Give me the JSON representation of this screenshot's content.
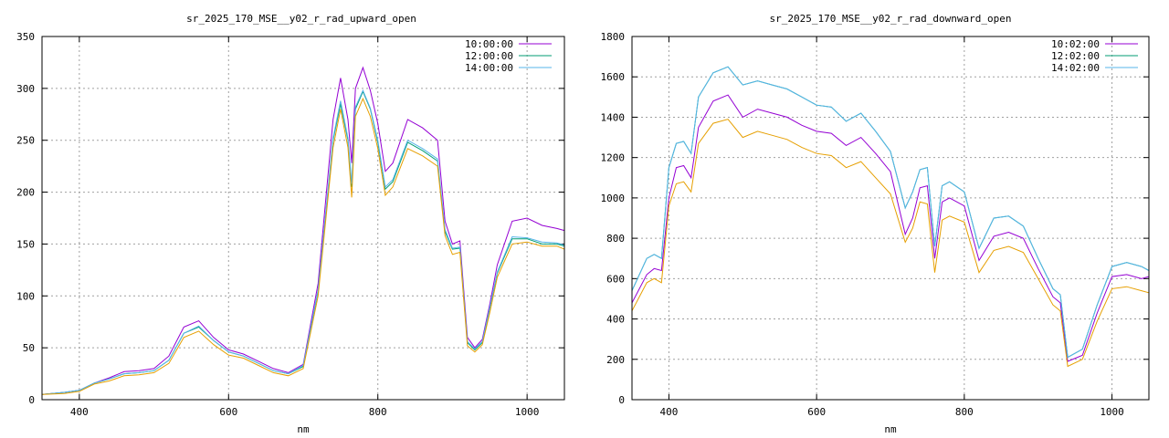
{
  "chart_data": [
    {
      "type": "line",
      "title": "sr_2025_170_MSE__y02_r_rad_upward_open",
      "xlabel": "nm",
      "ylabel": "",
      "xlim": [
        350,
        1050
      ],
      "ylim": [
        0,
        350
      ],
      "xticks": [
        400,
        600,
        800,
        1000
      ],
      "yticks": [
        0,
        50,
        100,
        150,
        200,
        250,
        300,
        350
      ],
      "grid": true,
      "legend": "top-right",
      "x": [
        350,
        380,
        400,
        420,
        440,
        460,
        480,
        500,
        520,
        540,
        560,
        580,
        600,
        620,
        640,
        660,
        680,
        700,
        720,
        740,
        750,
        760,
        765,
        770,
        780,
        790,
        800,
        810,
        820,
        840,
        860,
        880,
        890,
        900,
        910,
        920,
        930,
        940,
        950,
        960,
        980,
        1000,
        1020,
        1040,
        1050
      ],
      "series": [
        {
          "name": "10:00:00",
          "color": "#9400d3",
          "values": [
            5,
            7,
            9,
            16,
            21,
            27,
            28,
            30,
            42,
            70,
            76,
            60,
            48,
            44,
            37,
            30,
            26,
            34,
            112,
            270,
            310,
            270,
            228,
            300,
            320,
            298,
            266,
            220,
            228,
            270,
            262,
            250,
            172,
            150,
            153,
            60,
            50,
            58,
            92,
            130,
            172,
            175,
            168,
            165,
            163
          ]
        },
        {
          "name": "12:00:00",
          "color": "#009e73",
          "values": [
            5,
            7,
            9,
            16,
            20,
            25,
            26,
            28,
            38,
            64,
            70,
            57,
            46,
            42,
            35,
            28,
            25,
            32,
            105,
            250,
            285,
            250,
            205,
            280,
            297,
            280,
            248,
            203,
            210,
            248,
            240,
            230,
            162,
            145,
            146,
            55,
            48,
            55,
            88,
            122,
            155,
            155,
            150,
            150,
            148
          ]
        },
        {
          "name": "14:00:00",
          "color": "#56b4e9",
          "values": [
            5,
            7,
            9,
            16,
            20,
            25,
            26,
            28,
            38,
            64,
            71,
            57,
            46,
            42,
            35,
            28,
            25,
            33,
            106,
            252,
            288,
            252,
            208,
            282,
            298,
            281,
            250,
            205,
            212,
            250,
            242,
            232,
            164,
            146,
            147,
            56,
            49,
            56,
            89,
            123,
            157,
            156,
            152,
            151,
            149
          ]
        },
        {
          "name": "",
          "color": "#e69f00",
          "values": [
            5,
            6,
            8,
            15,
            18,
            23,
            24,
            26,
            35,
            60,
            66,
            53,
            43,
            40,
            33,
            26,
            23,
            30,
            100,
            243,
            280,
            243,
            195,
            273,
            290,
            273,
            242,
            197,
            205,
            242,
            235,
            225,
            158,
            140,
            142,
            52,
            46,
            53,
            84,
            118,
            150,
            152,
            148,
            148,
            145
          ]
        }
      ]
    },
    {
      "type": "line",
      "title": "sr_2025_170_MSE__y02_r_rad_downward_open",
      "xlabel": "nm",
      "ylabel": "",
      "xlim": [
        350,
        1050
      ],
      "ylim": [
        0,
        1800
      ],
      "xticks": [
        400,
        600,
        800,
        1000
      ],
      "yticks": [
        0,
        200,
        400,
        600,
        800,
        1000,
        1200,
        1400,
        1600,
        1800
      ],
      "grid": true,
      "legend": "top-right",
      "x": [
        350,
        370,
        380,
        390,
        400,
        410,
        420,
        430,
        440,
        460,
        480,
        500,
        520,
        540,
        560,
        580,
        600,
        620,
        640,
        660,
        680,
        700,
        720,
        730,
        740,
        750,
        760,
        770,
        780,
        800,
        820,
        840,
        860,
        880,
        900,
        920,
        930,
        940,
        960,
        980,
        1000,
        1020,
        1040,
        1050
      ],
      "series": [
        {
          "name": "10:02:00",
          "color": "#9400d3",
          "values": [
            480,
            620,
            650,
            640,
            1000,
            1150,
            1160,
            1100,
            1350,
            1480,
            1510,
            1400,
            1440,
            1420,
            1400,
            1360,
            1330,
            1320,
            1260,
            1300,
            1220,
            1130,
            820,
            900,
            1050,
            1060,
            700,
            980,
            1000,
            960,
            690,
            810,
            830,
            800,
            650,
            510,
            480,
            190,
            220,
            430,
            610,
            620,
            600,
            610
          ]
        },
        {
          "name": "12:02:00",
          "color": "#009e73",
          "values": [
            540,
            700,
            720,
            700,
            1150,
            1270,
            1280,
            1220,
            1500,
            1620,
            1650,
            1560,
            1580,
            1560,
            1540,
            1500,
            1460,
            1450,
            1380,
            1420,
            1330,
            1230,
            950,
            1030,
            1140,
            1150,
            760,
            1060,
            1080,
            1030,
            750,
            900,
            910,
            860,
            700,
            550,
            520,
            210,
            250,
            470,
            660,
            680,
            660,
            640
          ]
        },
        {
          "name": "14:02:00",
          "color": "#56b4e9",
          "values": [
            540,
            700,
            720,
            700,
            1150,
            1270,
            1280,
            1220,
            1500,
            1620,
            1650,
            1560,
            1580,
            1560,
            1540,
            1500,
            1460,
            1450,
            1380,
            1420,
            1330,
            1230,
            950,
            1030,
            1140,
            1150,
            760,
            1060,
            1080,
            1030,
            750,
            900,
            910,
            860,
            700,
            550,
            520,
            210,
            250,
            470,
            660,
            680,
            660,
            640
          ]
        },
        {
          "name": "",
          "color": "#e69f00",
          "values": [
            440,
            580,
            600,
            580,
            960,
            1070,
            1080,
            1030,
            1270,
            1370,
            1390,
            1300,
            1330,
            1310,
            1290,
            1250,
            1220,
            1210,
            1150,
            1180,
            1100,
            1020,
            780,
            850,
            980,
            970,
            630,
            890,
            910,
            880,
            630,
            740,
            760,
            730,
            600,
            470,
            440,
            165,
            200,
            390,
            550,
            560,
            540,
            530
          ]
        }
      ]
    }
  ]
}
